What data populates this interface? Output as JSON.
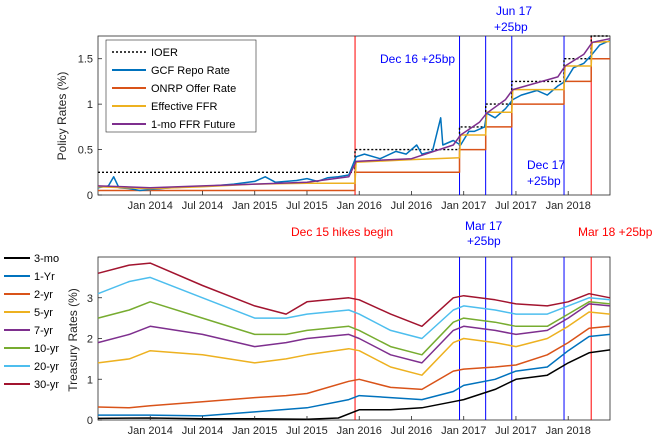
{
  "chart_data": [
    {
      "type": "line",
      "title": "",
      "ylabel": "Policy Rates (%)",
      "xlabel": "",
      "ylim": [
        0,
        1.75
      ],
      "xlim": [
        2013.5,
        2018.4
      ],
      "yticks": [
        0,
        0.5,
        1,
        1.5
      ],
      "ytick_labels": [
        "0",
        "0.5",
        "1",
        "1.5"
      ],
      "xticks": [
        2014.0,
        2014.5,
        2015.0,
        2015.5,
        2016.0,
        2016.5,
        2017.0,
        2017.5,
        2018.0
      ],
      "xtick_labels": [
        "Jan 2014",
        "Jul 2014",
        "Jan 2015",
        "Jul 2015",
        "Jan 2016",
        "Jul 2016",
        "Jan 2017",
        "Jul 2017",
        "Jan 2018"
      ],
      "legend": {
        "position": "top-left",
        "entries": [
          {
            "name": "IOER",
            "color": "#000000",
            "dash": true
          },
          {
            "name": "GCF Repo Rate",
            "color": "#0072bd"
          },
          {
            "name": "ONRP Offer Rate",
            "color": "#d95319"
          },
          {
            "name": "Effective FFR",
            "color": "#edb120"
          },
          {
            "name": "1-mo FFR Future",
            "color": "#7e2f8e"
          }
        ]
      },
      "series": [
        {
          "name": "IOER",
          "x": [
            2013.5,
            2015.96,
            2015.96,
            2016.96,
            2016.96,
            2017.21,
            2017.21,
            2017.46,
            2017.46,
            2017.96,
            2017.96,
            2018.22,
            2018.22,
            2018.4
          ],
          "values": [
            0.25,
            0.25,
            0.5,
            0.5,
            0.75,
            0.75,
            1.0,
            1.0,
            1.25,
            1.25,
            1.5,
            1.5,
            1.75,
            1.75
          ]
        },
        {
          "name": "ONRP Offer Rate",
          "x": [
            2013.5,
            2015.96,
            2015.96,
            2016.96,
            2016.96,
            2017.21,
            2017.21,
            2017.46,
            2017.46,
            2017.96,
            2017.96,
            2018.22,
            2018.22,
            2018.4
          ],
          "values": [
            0.05,
            0.05,
            0.25,
            0.25,
            0.5,
            0.5,
            0.75,
            0.75,
            1.0,
            1.0,
            1.25,
            1.25,
            1.5,
            1.5
          ]
        },
        {
          "name": "GCF Repo Rate",
          "x": [
            2013.5,
            2013.6,
            2013.65,
            2013.7,
            2013.8,
            2013.9,
            2014.0,
            2014.2,
            2014.4,
            2014.6,
            2014.8,
            2015.0,
            2015.1,
            2015.2,
            2015.4,
            2015.5,
            2015.6,
            2015.7,
            2015.8,
            2015.9,
            2015.97,
            2016.05,
            2016.2,
            2016.35,
            2016.45,
            2016.55,
            2016.6,
            2016.7,
            2016.78,
            2016.8,
            2016.9,
            2016.97,
            2017.05,
            2017.1,
            2017.2,
            2017.22,
            2017.3,
            2017.4,
            2017.47,
            2017.55,
            2017.7,
            2017.8,
            2017.9,
            2017.97,
            2018.05,
            2018.15,
            2018.23,
            2018.3,
            2018.4
          ],
          "values": [
            0.08,
            0.1,
            0.2,
            0.08,
            0.07,
            0.05,
            0.06,
            0.08,
            0.09,
            0.1,
            0.12,
            0.15,
            0.2,
            0.14,
            0.16,
            0.18,
            0.15,
            0.19,
            0.2,
            0.22,
            0.42,
            0.45,
            0.4,
            0.48,
            0.45,
            0.55,
            0.45,
            0.48,
            0.85,
            0.55,
            0.6,
            0.55,
            0.7,
            0.7,
            0.75,
            0.9,
            0.85,
            0.95,
            1.05,
            1.1,
            1.15,
            1.1,
            1.2,
            1.25,
            1.4,
            1.45,
            1.55,
            1.65,
            1.7
          ]
        },
        {
          "name": "Effective FFR",
          "x": [
            2013.5,
            2014.0,
            2014.5,
            2015.0,
            2015.5,
            2015.96,
            2015.97,
            2016.5,
            2016.96,
            2016.97,
            2017.21,
            2017.22,
            2017.46,
            2017.47,
            2017.96,
            2017.97,
            2018.22,
            2018.23,
            2018.4
          ],
          "values": [
            0.09,
            0.07,
            0.09,
            0.12,
            0.13,
            0.13,
            0.36,
            0.39,
            0.41,
            0.66,
            0.66,
            0.91,
            0.91,
            1.16,
            1.16,
            1.42,
            1.42,
            1.68,
            1.69
          ]
        },
        {
          "name": "1-mo FFR Future",
          "x": [
            2013.5,
            2014.0,
            2014.5,
            2015.0,
            2015.5,
            2015.9,
            2015.97,
            2016.5,
            2016.9,
            2016.97,
            2017.15,
            2017.22,
            2017.4,
            2017.47,
            2017.9,
            2017.97,
            2018.15,
            2018.23,
            2018.4
          ],
          "values": [
            0.1,
            0.08,
            0.1,
            0.12,
            0.14,
            0.2,
            0.37,
            0.4,
            0.55,
            0.66,
            0.8,
            0.9,
            1.05,
            1.16,
            1.3,
            1.42,
            1.55,
            1.68,
            1.72
          ]
        }
      ]
    },
    {
      "type": "line",
      "title": "",
      "ylabel": "Treasury Rates (%)",
      "xlabel": "",
      "ylim": [
        0,
        4
      ],
      "xlim": [
        2013.5,
        2018.4
      ],
      "yticks": [
        0,
        1,
        2,
        3
      ],
      "ytick_labels": [
        "0",
        "1",
        "2",
        "3"
      ],
      "xticks": [
        2014.0,
        2014.5,
        2015.0,
        2015.5,
        2016.0,
        2016.5,
        2017.0,
        2017.5,
        2018.0
      ],
      "xtick_labels": [
        "Jan 2014",
        "Jul 2014",
        "Jan 2015",
        "Jul 2015",
        "Jan 2016",
        "Jul 2016",
        "Jan 2017",
        "Jul 2017",
        "Jan 2018"
      ],
      "legend": {
        "position": "left-outside",
        "entries": [
          {
            "name": "3-mo",
            "color": "#000000"
          },
          {
            "name": "1-Yr",
            "color": "#0072bd"
          },
          {
            "name": "2-yr",
            "color": "#d95319"
          },
          {
            "name": "5-yr",
            "color": "#edb120"
          },
          {
            "name": "7-yr",
            "color": "#7e2f8e"
          },
          {
            "name": "10-yr",
            "color": "#77ac30"
          },
          {
            "name": "20-yr",
            "color": "#4dbeee"
          },
          {
            "name": "30-yr",
            "color": "#a2142f"
          }
        ]
      },
      "series": [
        {
          "name": "3-mo",
          "x": [
            2013.5,
            2014.0,
            2014.5,
            2015.0,
            2015.5,
            2015.8,
            2016.0,
            2016.3,
            2016.6,
            2016.9,
            2017.0,
            2017.3,
            2017.5,
            2017.8,
            2018.0,
            2018.2,
            2018.4
          ],
          "values": [
            0.04,
            0.05,
            0.03,
            0.03,
            0.02,
            0.05,
            0.25,
            0.25,
            0.3,
            0.45,
            0.5,
            0.75,
            1.0,
            1.1,
            1.4,
            1.65,
            1.72
          ]
        },
        {
          "name": "1-Yr",
          "x": [
            2013.5,
            2014.0,
            2014.5,
            2015.0,
            2015.5,
            2015.9,
            2016.0,
            2016.3,
            2016.6,
            2016.9,
            2017.0,
            2017.3,
            2017.5,
            2017.8,
            2018.0,
            2018.2,
            2018.4
          ],
          "values": [
            0.12,
            0.12,
            0.1,
            0.2,
            0.3,
            0.5,
            0.6,
            0.55,
            0.5,
            0.7,
            0.85,
            1.0,
            1.2,
            1.3,
            1.7,
            2.05,
            2.1
          ]
        },
        {
          "name": "2-yr",
          "x": [
            2013.5,
            2013.8,
            2014.0,
            2014.5,
            2015.0,
            2015.3,
            2015.5,
            2015.9,
            2016.0,
            2016.3,
            2016.6,
            2016.9,
            2017.0,
            2017.3,
            2017.5,
            2017.8,
            2018.0,
            2018.2,
            2018.4
          ],
          "values": [
            0.32,
            0.3,
            0.35,
            0.45,
            0.55,
            0.6,
            0.65,
            0.95,
            1.0,
            0.8,
            0.75,
            1.2,
            1.25,
            1.3,
            1.35,
            1.6,
            1.9,
            2.25,
            2.3
          ]
        },
        {
          "name": "5-yr",
          "x": [
            2013.5,
            2013.8,
            2014.0,
            2014.5,
            2015.0,
            2015.3,
            2015.5,
            2015.9,
            2016.0,
            2016.3,
            2016.6,
            2016.9,
            2017.0,
            2017.3,
            2017.5,
            2017.8,
            2018.0,
            2018.2,
            2018.4
          ],
          "values": [
            1.4,
            1.5,
            1.7,
            1.6,
            1.4,
            1.5,
            1.6,
            1.75,
            1.7,
            1.3,
            1.1,
            1.9,
            2.0,
            1.9,
            1.8,
            2.0,
            2.3,
            2.65,
            2.6
          ]
        },
        {
          "name": "7-yr",
          "x": [
            2013.5,
            2013.8,
            2014.0,
            2014.5,
            2015.0,
            2015.3,
            2015.5,
            2015.9,
            2016.0,
            2016.3,
            2016.6,
            2016.9,
            2017.0,
            2017.3,
            2017.5,
            2017.8,
            2018.0,
            2018.2,
            2018.4
          ],
          "values": [
            1.9,
            2.1,
            2.3,
            2.1,
            1.8,
            1.9,
            2.0,
            2.1,
            2.0,
            1.6,
            1.4,
            2.2,
            2.3,
            2.2,
            2.1,
            2.2,
            2.5,
            2.85,
            2.8
          ]
        },
        {
          "name": "10-yr",
          "x": [
            2013.5,
            2013.8,
            2014.0,
            2014.5,
            2015.0,
            2015.3,
            2015.5,
            2015.9,
            2016.0,
            2016.3,
            2016.6,
            2016.9,
            2017.0,
            2017.3,
            2017.5,
            2017.8,
            2018.0,
            2018.2,
            2018.4
          ],
          "values": [
            2.5,
            2.7,
            2.9,
            2.5,
            2.1,
            2.1,
            2.2,
            2.3,
            2.2,
            1.8,
            1.6,
            2.4,
            2.5,
            2.4,
            2.3,
            2.3,
            2.6,
            2.9,
            2.85
          ]
        },
        {
          "name": "20-yr",
          "x": [
            2013.5,
            2013.8,
            2014.0,
            2014.5,
            2015.0,
            2015.3,
            2015.5,
            2015.9,
            2016.0,
            2016.3,
            2016.6,
            2016.9,
            2017.0,
            2017.3,
            2017.5,
            2017.8,
            2018.0,
            2018.2,
            2018.4
          ],
          "values": [
            3.1,
            3.4,
            3.5,
            3.0,
            2.5,
            2.5,
            2.6,
            2.7,
            2.6,
            2.2,
            2.0,
            2.7,
            2.8,
            2.7,
            2.6,
            2.6,
            2.8,
            3.0,
            2.95
          ]
        },
        {
          "name": "30-yr",
          "x": [
            2013.5,
            2013.8,
            2014.0,
            2014.5,
            2015.0,
            2015.3,
            2015.5,
            2015.9,
            2016.0,
            2016.3,
            2016.6,
            2016.9,
            2017.0,
            2017.3,
            2017.5,
            2017.8,
            2018.0,
            2018.2,
            2018.4
          ],
          "values": [
            3.6,
            3.8,
            3.85,
            3.3,
            2.8,
            2.6,
            2.9,
            3.0,
            2.95,
            2.6,
            2.3,
            3.0,
            3.05,
            2.95,
            2.85,
            2.8,
            2.9,
            3.1,
            3.0
          ]
        }
      ]
    }
  ],
  "events": {
    "lines": [
      {
        "x": 2015.96,
        "color": "#ff0000"
      },
      {
        "x": 2016.96,
        "color": "#0000ff"
      },
      {
        "x": 2017.21,
        "color": "#0000ff"
      },
      {
        "x": 2017.46,
        "color": "#0000ff"
      },
      {
        "x": 2017.96,
        "color": "#0000ff"
      },
      {
        "x": 2018.22,
        "color": "#ff0000"
      }
    ],
    "labels": {
      "dec15": "Dec 15 hikes begin",
      "dec16": "Dec 16 +25bp",
      "mar17_a": "Mar 17",
      "mar17_b": "+25bp",
      "jun17_a": "Jun 17",
      "jun17_b": "+25bp",
      "dec17_a": "Dec 17",
      "dec17_b": "+25bp",
      "mar18": "Mar 18 +25bp"
    },
    "colors": {
      "red": "#ff0000",
      "blue": "#0000ff"
    }
  }
}
